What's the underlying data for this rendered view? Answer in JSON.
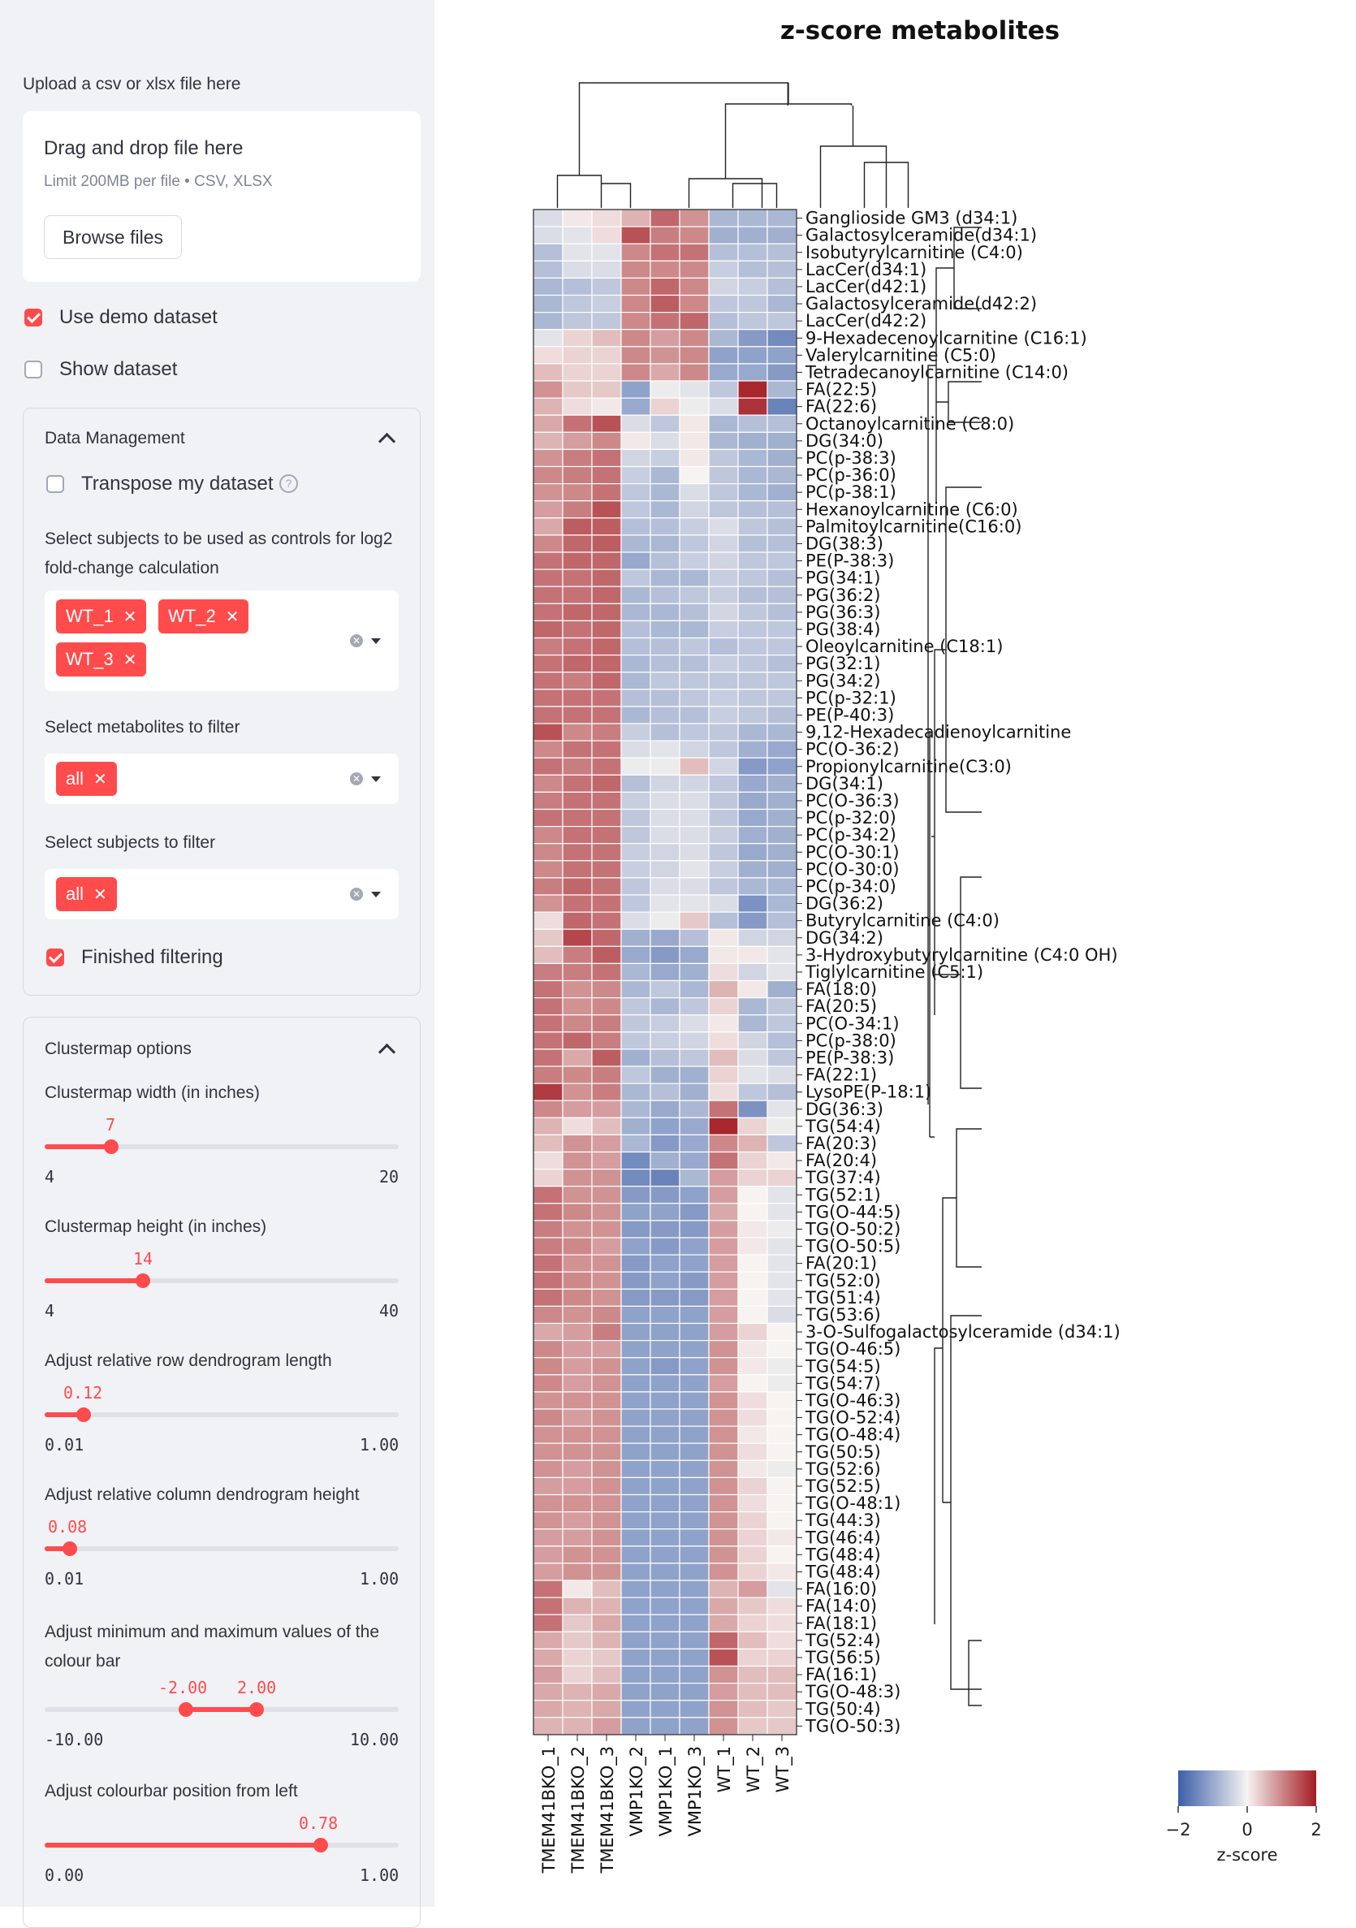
{
  "sidebar": {
    "upload": {
      "label": "Upload a csv or xlsx file here",
      "drop_title": "Drag and drop file here",
      "drop_limit": "Limit 200MB per file • CSV, XLSX",
      "browse_label": "Browse files"
    },
    "use_demo": {
      "label": "Use demo dataset",
      "checked": true
    },
    "show_dataset": {
      "label": "Show dataset",
      "checked": false
    },
    "data_management": {
      "title": "Data Management",
      "transpose": {
        "label": "Transpose my dataset",
        "checked": false
      },
      "controls_label": "Select subjects to be used as controls for log2 fold-change calculation",
      "controls_tags": [
        "WT_1",
        "WT_2",
        "WT_3"
      ],
      "metabolites_label": "Select metabolites to filter",
      "metabolites_tags": [
        "all"
      ],
      "subjects_label": "Select subjects to filter",
      "subjects_tags": [
        "all"
      ],
      "finished": {
        "label": "Finished filtering",
        "checked": true
      }
    },
    "clustermap_options": {
      "title": "Clustermap options",
      "sliders": [
        {
          "label": "Clustermap width (in inches)",
          "value": "7",
          "min": "4",
          "max": "20",
          "fraction": 0.1875
        },
        {
          "label": "Clustermap height (in inches)",
          "value": "14",
          "min": "4",
          "max": "40",
          "fraction": 0.2778
        },
        {
          "label": "Adjust relative row dendrogram length",
          "value": "0.12",
          "min": "0.01",
          "max": "1.00",
          "fraction": 0.111
        },
        {
          "label": "Adjust relative column dendrogram height",
          "value": "0.08",
          "min": "0.01",
          "max": "1.00",
          "fraction": 0.0707
        },
        {
          "label": "Adjust colourbar position from left",
          "value": "0.78",
          "min": "0.00",
          "max": "1.00",
          "fraction": 0.78
        }
      ],
      "range_slider": {
        "label": "Adjust minimum and maximum values of the colour bar",
        "low": "-2.00",
        "high": "2.00",
        "min": "-10.00",
        "max": "10.00",
        "low_fraction": 0.4,
        "high_fraction": 0.6
      }
    }
  },
  "chart_data": {
    "type": "heatmap",
    "title": "z-score metabolites",
    "colorbar_label": "z-score",
    "colorbar_ticks": [
      "−2",
      "0",
      "2"
    ],
    "vmin": -2,
    "vmax": 2,
    "colormap": [
      "#3b5fa8",
      "#f6f3f1",
      "#a31c23"
    ],
    "columns": [
      "TMEM41BKO_1",
      "TMEM41BKO_2",
      "TMEM41BKO_3",
      "VMP1KO_2",
      "VMP1KO_1",
      "VMP1KO_3",
      "WT_1",
      "WT_2",
      "WT_3"
    ],
    "rows": [
      "Ganglioside GM3 (d34:1)",
      "Galactosylceramide(d34:1)",
      "Isobutyrylcarnitine (C4:0)",
      "LacCer(d34:1)",
      "LacCer(d42:1)",
      "Galactosylceramide(d42:2)",
      "LacCer(d42:2)",
      "9-Hexadecenoylcarnitine (C16:1)",
      "Valerylcarnitine (C5:0)",
      "Tetradecanoylcarnitine (C14:0)",
      "FA(22:5)",
      "FA(22:6)",
      "Octanoylcarnitine (C8:0)",
      "DG(34:0)",
      "PC(p-38:3)",
      "PC(p-36:0)",
      "PC(p-38:1)",
      "Hexanoylcarnitine  (C6:0)",
      "Palmitoylcarnitine(C16:0)",
      "DG(38:3)",
      "PE(P-38:3)",
      "PG(34:1)",
      "PG(36:2)",
      "PG(36:3)",
      "PG(38:4)",
      "Oleoylcarnitine (C18:1)",
      "PG(32:1)",
      "PG(34:2)",
      "PC(p-32:1)",
      "PE(P-40:3)",
      "9,12-Hexadecadienoylcarnitine",
      "PC(O-36:2)",
      "Propionylcarnitine(C3:0)",
      "DG(34:1)",
      "PC(O-36:3)",
      "PC(p-32:0)",
      "PC(p-34:2)",
      "PC(O-30:1)",
      "PC(O-30:0)",
      "PC(p-34:0)",
      "DG(36:2)",
      "Butyrylcarnitine (C4:0)",
      "DG(34:2)",
      "3-Hydroxybutyrylcarnitine (C4:0 OH)",
      "Tiglylcarnitine (C5:1)",
      "FA(18:0)",
      "FA(20:5)",
      "PC(O-34:1)",
      "PC(p-38:0)",
      "PE(P-38:3)",
      "FA(22:1)",
      "LysoPE(P-18:1)",
      "DG(36:3)",
      "TG(54:4)",
      "FA(20:3)",
      "FA(20:4)",
      "TG(37:4)",
      "TG(52:1)",
      "TG(O-44:5)",
      "TG(O-50:2)",
      "TG(O-50:5)",
      "FA(20:1)",
      "TG(52:0)",
      "TG(51:4)",
      "TG(53:6)",
      "3-O-Sulfogalactosylceramide (d34:1)",
      "TG(O-46:5)",
      "TG(54:5)",
      "TG(54:7)",
      "TG(O-46:3)",
      "TG(O-52:4)",
      "TG(O-48:4)",
      "TG(50:5)",
      "TG(52:6)",
      "TG(52:5)",
      "TG(O-48:1)",
      "TG(44:3)",
      "TG(46:4)",
      "TG(48:4)",
      "TG(48:4)",
      "FA(16:0)",
      "FA(14:0)",
      "FA(18:1)",
      "TG(52:4)",
      "TG(56:5)",
      "FA(16:1)",
      "TG(O-48:3)",
      "TG(50:4)",
      "TG(O-50:3)"
    ],
    "values": [
      [
        -0.3,
        0.1,
        0.2,
        0.6,
        1.3,
        0.9,
        -0.8,
        -0.8,
        -0.8
      ],
      [
        -0.3,
        -0.2,
        0.2,
        1.5,
        1.1,
        1.0,
        -0.9,
        -0.9,
        -0.9
      ],
      [
        -0.7,
        -0.2,
        -0.2,
        1.0,
        1.2,
        1.2,
        -0.7,
        -0.7,
        -0.7
      ],
      [
        -0.7,
        -0.3,
        -0.3,
        1.0,
        1.0,
        1.0,
        -0.5,
        -0.7,
        -0.7
      ],
      [
        -0.8,
        -0.7,
        -0.6,
        1.0,
        1.3,
        1.0,
        -0.4,
        -0.5,
        -0.7
      ],
      [
        -0.8,
        -0.6,
        -0.5,
        1.0,
        1.4,
        1.0,
        -0.6,
        -0.6,
        -0.8
      ],
      [
        -0.8,
        -0.6,
        -0.6,
        1.0,
        1.2,
        1.3,
        -0.7,
        -0.6,
        -0.6
      ],
      [
        -0.2,
        0.3,
        0.5,
        1.0,
        0.8,
        1.0,
        -0.8,
        -1.2,
        -1.4
      ],
      [
        0.2,
        0.3,
        0.3,
        1.0,
        0.9,
        1.0,
        -1.1,
        -1.1,
        -1.1
      ],
      [
        0.5,
        0.3,
        0.3,
        1.0,
        0.7,
        1.0,
        -1.0,
        -1.0,
        -1.2
      ],
      [
        0.9,
        0.4,
        0.4,
        -1.1,
        -0.1,
        -0.2,
        -0.6,
        1.9,
        -0.8
      ],
      [
        0.6,
        0.2,
        0.1,
        -1.0,
        0.3,
        -0.1,
        -0.3,
        1.8,
        -1.5
      ],
      [
        0.7,
        1.2,
        1.5,
        -0.3,
        -0.6,
        0.1,
        -0.8,
        -0.7,
        -0.7
      ],
      [
        0.6,
        0.8,
        1.0,
        0.1,
        -0.3,
        0.1,
        -0.8,
        -0.9,
        -0.9
      ],
      [
        0.9,
        1.1,
        1.2,
        -0.4,
        -0.5,
        0.1,
        -0.6,
        -0.8,
        -0.9
      ],
      [
        1.0,
        1.1,
        1.2,
        -0.5,
        -0.8,
        0.0,
        -0.6,
        -0.8,
        -0.8
      ],
      [
        0.9,
        1.0,
        1.2,
        -0.6,
        -0.8,
        -0.3,
        -0.6,
        -0.8,
        -0.9
      ],
      [
        0.8,
        1.1,
        1.5,
        -0.6,
        -0.8,
        -0.4,
        -0.6,
        -0.7,
        -0.7
      ],
      [
        0.7,
        1.4,
        1.4,
        -0.7,
        -0.7,
        -0.5,
        -0.3,
        -0.6,
        -0.7
      ],
      [
        1.0,
        1.3,
        1.4,
        -0.8,
        -0.8,
        -0.6,
        -0.4,
        -0.7,
        -0.7
      ],
      [
        1.2,
        1.3,
        1.3,
        -1.0,
        -0.7,
        -0.5,
        -0.4,
        -0.6,
        -0.6
      ],
      [
        1.2,
        1.2,
        1.3,
        -0.6,
        -0.8,
        -0.8,
        -0.5,
        -0.6,
        -0.7
      ],
      [
        1.2,
        1.2,
        1.3,
        -0.8,
        -0.7,
        -0.6,
        -0.5,
        -0.7,
        -0.7
      ],
      [
        1.2,
        1.3,
        1.3,
        -0.8,
        -0.8,
        -0.7,
        -0.4,
        -0.6,
        -0.7
      ],
      [
        1.3,
        1.2,
        1.3,
        -0.7,
        -0.8,
        -0.8,
        -0.5,
        -0.6,
        -0.6
      ],
      [
        1.1,
        1.2,
        1.3,
        -0.7,
        -0.7,
        -0.6,
        -0.7,
        -0.6,
        -0.6
      ],
      [
        1.2,
        1.3,
        1.3,
        -0.8,
        -0.7,
        -0.7,
        -0.5,
        -0.6,
        -0.7
      ],
      [
        1.2,
        1.1,
        1.3,
        -0.8,
        -0.6,
        -0.6,
        -0.6,
        -0.6,
        -0.6
      ],
      [
        1.2,
        1.2,
        1.2,
        -0.7,
        -0.7,
        -0.6,
        -0.5,
        -0.6,
        -0.6
      ],
      [
        1.2,
        1.2,
        1.2,
        -0.8,
        -0.7,
        -0.7,
        -0.5,
        -0.6,
        -0.7
      ],
      [
        1.5,
        1.0,
        1.1,
        -0.5,
        -0.7,
        -0.6,
        -0.6,
        -0.8,
        -0.8
      ],
      [
        1.0,
        1.2,
        1.2,
        -0.3,
        -0.2,
        -0.4,
        -0.6,
        -0.9,
        -1.0
      ],
      [
        1.2,
        1.1,
        1.2,
        -0.1,
        -0.1,
        0.5,
        -0.4,
        -1.2,
        -1.1
      ],
      [
        1.0,
        1.2,
        1.3,
        -0.7,
        -0.4,
        -0.4,
        -0.6,
        -1.0,
        -0.9
      ],
      [
        1.1,
        1.2,
        1.2,
        -0.5,
        -0.3,
        -0.3,
        -0.6,
        -1.0,
        -0.9
      ],
      [
        1.2,
        1.2,
        1.2,
        -0.6,
        -0.3,
        -0.3,
        -0.6,
        -1.0,
        -0.9
      ],
      [
        1.0,
        1.2,
        1.2,
        -0.6,
        -0.3,
        -0.3,
        -0.5,
        -0.9,
        -0.9
      ],
      [
        1.0,
        1.2,
        1.2,
        -0.5,
        -0.4,
        -0.3,
        -0.6,
        -1.0,
        -0.9
      ],
      [
        1.0,
        1.2,
        1.2,
        -0.5,
        -0.4,
        -0.2,
        -0.5,
        -0.9,
        -0.9
      ],
      [
        1.1,
        1.3,
        1.2,
        -0.6,
        -0.3,
        -0.3,
        -0.6,
        -0.8,
        -0.8
      ],
      [
        0.9,
        1.2,
        1.2,
        -0.6,
        -0.2,
        -0.2,
        -0.3,
        -1.3,
        -0.8
      ],
      [
        0.2,
        1.3,
        1.2,
        -0.3,
        -0.1,
        0.4,
        -0.7,
        -1.2,
        -0.7
      ],
      [
        0.4,
        1.6,
        1.3,
        -0.9,
        -1.0,
        -0.7,
        0.1,
        -0.4,
        -0.4
      ],
      [
        0.5,
        1.1,
        1.4,
        -1.0,
        -1.2,
        -1.0,
        0.1,
        0.1,
        -0.2
      ],
      [
        1.1,
        1.1,
        1.2,
        -0.8,
        -1.0,
        -0.9,
        0.2,
        -0.4,
        -0.2
      ],
      [
        1.2,
        0.9,
        1.0,
        -0.8,
        -0.6,
        -0.8,
        0.6,
        0.1,
        -0.9
      ],
      [
        1.2,
        0.9,
        1.0,
        -0.6,
        -0.8,
        -0.6,
        0.3,
        -0.8,
        -0.6
      ],
      [
        1.2,
        1.0,
        1.1,
        -0.6,
        -0.5,
        -0.3,
        0.1,
        -0.8,
        -0.6
      ],
      [
        1.2,
        1.3,
        1.1,
        -0.6,
        -0.5,
        -0.4,
        0.2,
        -0.4,
        -0.7
      ],
      [
        1.2,
        0.7,
        1.4,
        -0.9,
        -0.7,
        -0.6,
        0.5,
        -0.3,
        -0.6
      ],
      [
        1.1,
        1.0,
        1.1,
        -0.6,
        -0.9,
        -0.9,
        0.3,
        -0.2,
        -0.3
      ],
      [
        1.7,
        0.9,
        1.1,
        -0.8,
        -0.7,
        -0.9,
        0.2,
        -0.6,
        -0.7
      ],
      [
        1.0,
        0.8,
        0.8,
        -0.8,
        -1.0,
        -0.8,
        1.2,
        -1.3,
        -0.2
      ],
      [
        0.6,
        0.2,
        0.5,
        -0.9,
        -1.1,
        -1.0,
        1.9,
        0.3,
        -0.1
      ],
      [
        0.5,
        0.9,
        0.8,
        -0.8,
        -1.2,
        -1.0,
        1.0,
        0.6,
        -0.6
      ],
      [
        0.2,
        0.9,
        0.8,
        -1.4,
        -0.9,
        -1.0,
        1.2,
        0.3,
        0.1
      ],
      [
        0.3,
        0.9,
        0.9,
        -1.4,
        -1.5,
        -0.8,
        0.8,
        0.3,
        0.3
      ],
      [
        1.2,
        0.9,
        0.9,
        -1.2,
        -1.2,
        -1.1,
        0.8,
        0.0,
        -0.2
      ],
      [
        1.2,
        1.0,
        0.9,
        -1.1,
        -1.1,
        -1.2,
        0.7,
        0.0,
        -0.2
      ],
      [
        1.1,
        0.9,
        0.9,
        -1.2,
        -1.2,
        -1.2,
        0.8,
        0.1,
        -0.1
      ],
      [
        1.1,
        1.0,
        0.8,
        -1.1,
        -1.2,
        -1.1,
        0.8,
        0.1,
        -0.2
      ],
      [
        1.2,
        0.9,
        0.9,
        -1.2,
        -1.1,
        -1.1,
        0.8,
        0.0,
        -0.2
      ],
      [
        1.2,
        1.0,
        0.9,
        -1.2,
        -1.1,
        -1.2,
        0.8,
        0.0,
        -0.2
      ],
      [
        1.2,
        1.0,
        0.9,
        -1.2,
        -1.2,
        -1.2,
        0.8,
        0.0,
        -0.2
      ],
      [
        1.0,
        0.9,
        1.0,
        -1.1,
        -1.1,
        -1.1,
        0.8,
        0.0,
        -0.3
      ],
      [
        0.7,
        0.8,
        1.1,
        -1.1,
        -1.1,
        -1.1,
        0.8,
        0.3,
        0.0
      ],
      [
        1.0,
        0.8,
        0.8,
        -1.1,
        -1.1,
        -1.1,
        0.9,
        0.1,
        0.0
      ],
      [
        1.0,
        0.8,
        0.9,
        -1.1,
        -1.2,
        -1.1,
        0.9,
        0.1,
        -0.1
      ],
      [
        1.0,
        0.8,
        0.9,
        -1.1,
        -1.1,
        -1.1,
        0.8,
        0.0,
        -0.1
      ],
      [
        0.9,
        0.9,
        0.9,
        -1.1,
        -1.1,
        -1.1,
        0.9,
        0.2,
        0.0
      ],
      [
        1.0,
        0.8,
        0.9,
        -1.1,
        -1.1,
        -1.1,
        0.9,
        0.2,
        0.0
      ],
      [
        0.9,
        0.9,
        0.9,
        -1.1,
        -1.1,
        -1.1,
        0.9,
        0.1,
        0.0
      ],
      [
        0.9,
        0.9,
        0.9,
        -1.1,
        -1.1,
        -1.1,
        0.9,
        0.2,
        0.0
      ],
      [
        0.9,
        0.8,
        0.9,
        -1.1,
        -1.1,
        -1.1,
        0.9,
        0.1,
        -0.1
      ],
      [
        0.8,
        0.8,
        0.9,
        -1.1,
        -1.1,
        -1.1,
        0.9,
        0.3,
        0.0
      ],
      [
        0.9,
        0.9,
        0.9,
        -1.1,
        -1.1,
        -1.1,
        0.9,
        0.2,
        0.0
      ],
      [
        0.9,
        0.8,
        0.9,
        -1.1,
        -1.1,
        -1.1,
        0.9,
        0.3,
        0.0
      ],
      [
        0.8,
        0.8,
        0.9,
        -1.1,
        -1.1,
        -1.1,
        0.9,
        0.3,
        0.1
      ],
      [
        0.8,
        0.9,
        0.9,
        -1.1,
        -1.1,
        -1.1,
        0.9,
        0.3,
        0.0
      ],
      [
        0.8,
        0.9,
        0.9,
        -1.1,
        -1.1,
        -1.1,
        0.9,
        0.3,
        0.1
      ],
      [
        1.2,
        0.1,
        0.5,
        -1.1,
        -1.1,
        -1.1,
        0.6,
        0.8,
        -0.2
      ],
      [
        1.2,
        0.6,
        0.6,
        -1.1,
        -1.1,
        -1.1,
        0.7,
        0.4,
        0.2
      ],
      [
        1.2,
        0.4,
        0.7,
        -1.1,
        -1.1,
        -1.1,
        0.7,
        0.3,
        0.2
      ],
      [
        0.7,
        0.4,
        0.6,
        -1.1,
        -1.1,
        -1.1,
        1.3,
        0.5,
        0.2
      ],
      [
        0.7,
        0.3,
        0.4,
        -1.1,
        -1.1,
        -1.1,
        1.5,
        0.3,
        0.3
      ],
      [
        0.8,
        0.3,
        0.5,
        -1.1,
        -1.1,
        -1.1,
        0.9,
        0.5,
        0.5
      ],
      [
        0.7,
        0.6,
        0.7,
        -1.1,
        -1.1,
        -1.1,
        0.8,
        0.5,
        0.5
      ],
      [
        0.7,
        0.6,
        0.7,
        -1.1,
        -1.1,
        -1.1,
        0.9,
        0.5,
        0.4
      ],
      [
        0.6,
        0.6,
        0.8,
        -1.1,
        -1.1,
        -1.1,
        0.9,
        0.4,
        0.4
      ]
    ]
  }
}
